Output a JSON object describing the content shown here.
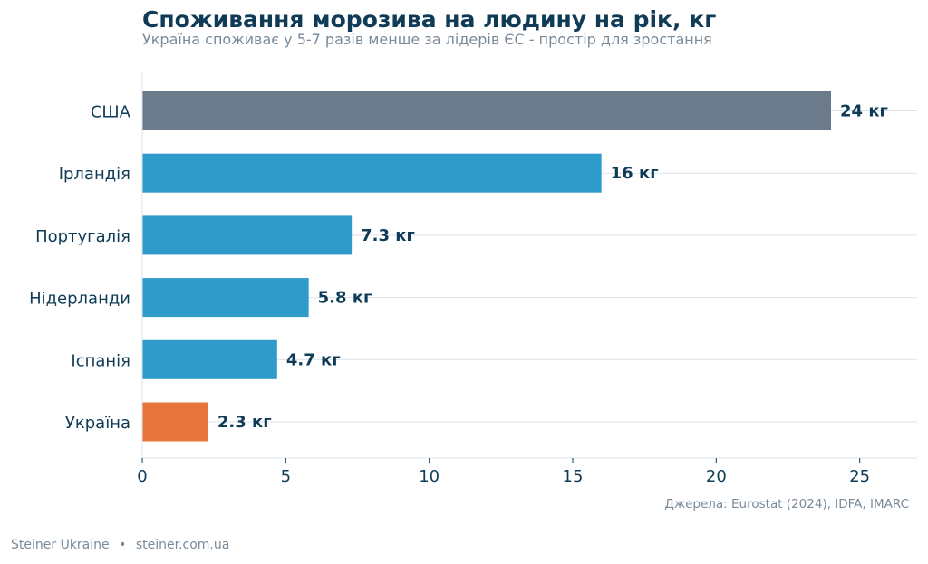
{
  "chart_data": {
    "type": "bar",
    "orientation": "horizontal",
    "title": "Споживання морозива на людину на рік, кг",
    "subtitle": "Україна споживає у 5-7 разів менше за лідерів ЄС - простір для зростання",
    "categories": [
      "США",
      "Ірландія",
      "Португалія",
      "Нідерланди",
      "Іспанія",
      "Україна"
    ],
    "values": [
      24,
      16,
      7.3,
      5.8,
      4.7,
      2.3
    ],
    "value_labels": [
      "24 кг",
      "16 кг",
      "7.3 кг",
      "5.8 кг",
      "4.7 кг",
      "2.3 кг"
    ],
    "colors": [
      "#6b7b8b",
      "#2e9bcb",
      "#2e9bcb",
      "#2e9bcb",
      "#2e9bcb",
      "#e8763c"
    ],
    "xlim": [
      0,
      27
    ],
    "xticks": [
      0,
      5,
      10,
      15,
      20,
      25
    ],
    "grid": "horizontal"
  },
  "source": "Джерела: Eurostat (2024), IDFA, IMARC",
  "footer": {
    "brand": "Steiner Ukraine",
    "separator": "•",
    "site": "steiner.com.ua"
  }
}
